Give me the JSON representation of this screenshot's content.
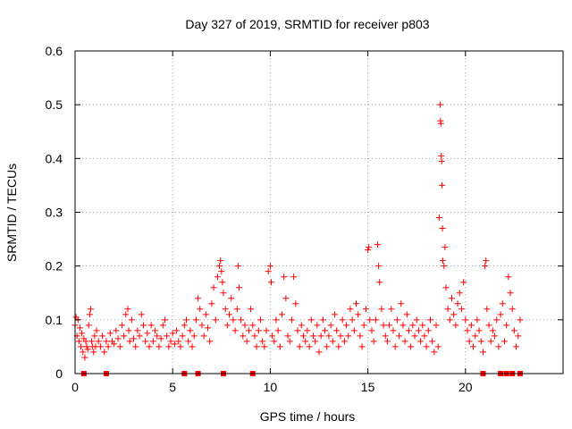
{
  "chart_data": {
    "type": "scatter",
    "title": "Day 327 of 2019, SRMTID for receiver p803",
    "xlabel": "GPS time / hours",
    "ylabel": "SRMTID / TECUs",
    "xlim": [
      0,
      25
    ],
    "ylim": [
      0,
      0.6
    ],
    "grid": true,
    "x_ticks": [
      0,
      5,
      10,
      15,
      20
    ],
    "x_tick_labels": [
      "0",
      "5",
      "10",
      "15",
      "20"
    ],
    "y_ticks": [
      0,
      0.1,
      0.2,
      0.3,
      0.4,
      0.5,
      0.6
    ],
    "y_tick_labels": [
      "0",
      "0.1",
      "0.2",
      "0.3",
      "0.4",
      "0.5",
      "0.6"
    ],
    "series": [
      {
        "name": "SRMTID",
        "marker": "plus",
        "color": "#ff0000",
        "points": [
          [
            0.0,
            0.09
          ],
          [
            0.05,
            0.105
          ],
          [
            0.1,
            0.07
          ],
          [
            0.15,
            0.1
          ],
          [
            0.2,
            0.06
          ],
          [
            0.25,
            0.085
          ],
          [
            0.3,
            0.05
          ],
          [
            0.35,
            0.075
          ],
          [
            0.4,
            0.04
          ],
          [
            0.45,
            0.065
          ],
          [
            0.5,
            0.03
          ],
          [
            0.55,
            0.06
          ],
          [
            0.6,
            0.05
          ],
          [
            0.65,
            0.045
          ],
          [
            0.7,
            0.09
          ],
          [
            0.75,
            0.11
          ],
          [
            0.8,
            0.12
          ],
          [
            0.85,
            0.06
          ],
          [
            0.9,
            0.05
          ],
          [
            0.95,
            0.04
          ],
          [
            1.0,
            0.07
          ],
          [
            1.05,
            0.05
          ],
          [
            1.1,
            0.08
          ],
          [
            1.2,
            0.06
          ],
          [
            1.3,
            0.05
          ],
          [
            1.4,
            0.07
          ],
          [
            1.5,
            0.04
          ],
          [
            1.6,
            0.06
          ],
          [
            1.7,
            0.05
          ],
          [
            1.8,
            0.075
          ],
          [
            1.9,
            0.06
          ],
          [
            2.0,
            0.055
          ],
          [
            2.1,
            0.08
          ],
          [
            2.2,
            0.065
          ],
          [
            2.3,
            0.05
          ],
          [
            2.4,
            0.09
          ],
          [
            2.5,
            0.07
          ],
          [
            2.6,
            0.11
          ],
          [
            2.7,
            0.12
          ],
          [
            2.75,
            0.08
          ],
          [
            2.8,
            0.06
          ],
          [
            2.9,
            0.1
          ],
          [
            3.0,
            0.065
          ],
          [
            3.1,
            0.05
          ],
          [
            3.2,
            0.08
          ],
          [
            3.3,
            0.07
          ],
          [
            3.4,
            0.11
          ],
          [
            3.5,
            0.09
          ],
          [
            3.6,
            0.06
          ],
          [
            3.7,
            0.075
          ],
          [
            3.8,
            0.05
          ],
          [
            3.9,
            0.09
          ],
          [
            4.0,
            0.06
          ],
          [
            4.1,
            0.08
          ],
          [
            4.2,
            0.07
          ],
          [
            4.3,
            0.05
          ],
          [
            4.4,
            0.065
          ],
          [
            4.5,
            0.09
          ],
          [
            4.6,
            0.1
          ],
          [
            4.7,
            0.07
          ],
          [
            4.8,
            0.05
          ],
          [
            4.9,
            0.06
          ],
          [
            5.0,
            0.075
          ],
          [
            5.1,
            0.055
          ],
          [
            5.2,
            0.08
          ],
          [
            5.3,
            0.06
          ],
          [
            5.4,
            0.05
          ],
          [
            5.5,
            0.07
          ],
          [
            5.6,
            0.09
          ],
          [
            5.7,
            0.1
          ],
          [
            5.8,
            0.06
          ],
          [
            5.9,
            0.08
          ],
          [
            6.0,
            0.05
          ],
          [
            6.1,
            0.07
          ],
          [
            6.2,
            0.1
          ],
          [
            6.3,
            0.14
          ],
          [
            6.4,
            0.12
          ],
          [
            6.5,
            0.09
          ],
          [
            6.6,
            0.07
          ],
          [
            6.7,
            0.11
          ],
          [
            6.8,
            0.085
          ],
          [
            6.9,
            0.06
          ],
          [
            7.0,
            0.13
          ],
          [
            7.1,
            0.16
          ],
          [
            7.2,
            0.1
          ],
          [
            7.3,
            0.18
          ],
          [
            7.4,
            0.2
          ],
          [
            7.45,
            0.21
          ],
          [
            7.5,
            0.19
          ],
          [
            7.55,
            0.17
          ],
          [
            7.6,
            0.15
          ],
          [
            7.7,
            0.12
          ],
          [
            7.8,
            0.09
          ],
          [
            7.9,
            0.11
          ],
          [
            8.0,
            0.14
          ],
          [
            8.1,
            0.1
          ],
          [
            8.2,
            0.08
          ],
          [
            8.3,
            0.12
          ],
          [
            8.35,
            0.2
          ],
          [
            8.4,
            0.16
          ],
          [
            8.5,
            0.1
          ],
          [
            8.6,
            0.07
          ],
          [
            8.7,
            0.09
          ],
          [
            8.8,
            0.06
          ],
          [
            8.9,
            0.08
          ],
          [
            9.0,
            0.12
          ],
          [
            9.1,
            0.09
          ],
          [
            9.2,
            0.07
          ],
          [
            9.3,
            0.05
          ],
          [
            9.4,
            0.08
          ],
          [
            9.5,
            0.1
          ],
          [
            9.6,
            0.06
          ],
          [
            9.7,
            0.05
          ],
          [
            9.8,
            0.08
          ],
          [
            9.9,
            0.19
          ],
          [
            10.0,
            0.2
          ],
          [
            10.05,
            0.17
          ],
          [
            10.1,
            0.07
          ],
          [
            10.2,
            0.06
          ],
          [
            10.3,
            0.1
          ],
          [
            10.4,
            0.08
          ],
          [
            10.5,
            0.05
          ],
          [
            10.6,
            0.11
          ],
          [
            10.7,
            0.18
          ],
          [
            10.8,
            0.14
          ],
          [
            10.9,
            0.07
          ],
          [
            11.0,
            0.06
          ],
          [
            11.1,
            0.1
          ],
          [
            11.2,
            0.18
          ],
          [
            11.3,
            0.13
          ],
          [
            11.4,
            0.08
          ],
          [
            11.5,
            0.05
          ],
          [
            11.6,
            0.09
          ],
          [
            11.7,
            0.07
          ],
          [
            11.8,
            0.06
          ],
          [
            11.9,
            0.08
          ],
          [
            12.0,
            0.05
          ],
          [
            12.1,
            0.1
          ],
          [
            12.2,
            0.07
          ],
          [
            12.3,
            0.06
          ],
          [
            12.4,
            0.09
          ],
          [
            12.5,
            0.04
          ],
          [
            12.6,
            0.07
          ],
          [
            12.7,
            0.1
          ],
          [
            12.8,
            0.08
          ],
          [
            12.9,
            0.05
          ],
          [
            13.0,
            0.07
          ],
          [
            13.1,
            0.09
          ],
          [
            13.2,
            0.06
          ],
          [
            13.3,
            0.11
          ],
          [
            13.4,
            0.08
          ],
          [
            13.5,
            0.05
          ],
          [
            13.6,
            0.07
          ],
          [
            13.7,
            0.1
          ],
          [
            13.8,
            0.06
          ],
          [
            13.9,
            0.09
          ],
          [
            14.0,
            0.07
          ],
          [
            14.1,
            0.12
          ],
          [
            14.2,
            0.1
          ],
          [
            14.3,
            0.08
          ],
          [
            14.4,
            0.13
          ],
          [
            14.5,
            0.11
          ],
          [
            14.6,
            0.07
          ],
          [
            14.7,
            0.05
          ],
          [
            14.8,
            0.09
          ],
          [
            14.9,
            0.12
          ],
          [
            15.0,
            0.23
          ],
          [
            15.05,
            0.235
          ],
          [
            15.1,
            0.1
          ],
          [
            15.2,
            0.08
          ],
          [
            15.3,
            0.06
          ],
          [
            15.4,
            0.1
          ],
          [
            15.5,
            0.24
          ],
          [
            15.55,
            0.2
          ],
          [
            15.6,
            0.17
          ],
          [
            15.7,
            0.12
          ],
          [
            15.8,
            0.09
          ],
          [
            15.9,
            0.07
          ],
          [
            16.0,
            0.06
          ],
          [
            16.1,
            0.09
          ],
          [
            16.2,
            0.12
          ],
          [
            16.3,
            0.08
          ],
          [
            16.4,
            0.05
          ],
          [
            16.5,
            0.1
          ],
          [
            16.6,
            0.07
          ],
          [
            16.7,
            0.13
          ],
          [
            16.8,
            0.09
          ],
          [
            16.9,
            0.06
          ],
          [
            17.0,
            0.11
          ],
          [
            17.1,
            0.08
          ],
          [
            17.2,
            0.05
          ],
          [
            17.3,
            0.09
          ],
          [
            17.4,
            0.07
          ],
          [
            17.5,
            0.1
          ],
          [
            17.6,
            0.08
          ],
          [
            17.7,
            0.06
          ],
          [
            17.8,
            0.09
          ],
          [
            17.9,
            0.07
          ],
          [
            18.0,
            0.05
          ],
          [
            18.1,
            0.08
          ],
          [
            18.2,
            0.1
          ],
          [
            18.3,
            0.06
          ],
          [
            18.4,
            0.04
          ],
          [
            18.5,
            0.09
          ],
          [
            18.6,
            0.05
          ],
          [
            18.65,
            0.29
          ],
          [
            18.7,
            0.5
          ],
          [
            18.72,
            0.47
          ],
          [
            18.74,
            0.465
          ],
          [
            18.76,
            0.405
          ],
          [
            18.78,
            0.395
          ],
          [
            18.8,
            0.35
          ],
          [
            18.82,
            0.27
          ],
          [
            18.84,
            0.21
          ],
          [
            18.9,
            0.2
          ],
          [
            18.95,
            0.235
          ],
          [
            19.0,
            0.16
          ],
          [
            19.1,
            0.12
          ],
          [
            19.2,
            0.1
          ],
          [
            19.3,
            0.14
          ],
          [
            19.4,
            0.11
          ],
          [
            19.5,
            0.09
          ],
          [
            19.6,
            0.13
          ],
          [
            19.7,
            0.15
          ],
          [
            19.8,
            0.12
          ],
          [
            19.9,
            0.17
          ],
          [
            20.0,
            0.1
          ],
          [
            20.1,
            0.08
          ],
          [
            20.2,
            0.06
          ],
          [
            20.3,
            0.09
          ],
          [
            20.4,
            0.05
          ],
          [
            20.5,
            0.07
          ],
          [
            20.6,
            0.1
          ],
          [
            20.7,
            0.08
          ],
          [
            20.8,
            0.06
          ],
          [
            20.9,
            0.04
          ],
          [
            21.0,
            0.2
          ],
          [
            21.05,
            0.21
          ],
          [
            21.1,
            0.12
          ],
          [
            21.2,
            0.09
          ],
          [
            21.3,
            0.06
          ],
          [
            21.4,
            0.08
          ],
          [
            21.5,
            0.07
          ],
          [
            21.6,
            0.1
          ],
          [
            21.7,
            0.05
          ],
          [
            21.8,
            0.11
          ],
          [
            21.9,
            0.13
          ],
          [
            22.0,
            0.06
          ],
          [
            22.1,
            0.09
          ],
          [
            22.2,
            0.18
          ],
          [
            22.3,
            0.15
          ],
          [
            22.4,
            0.12
          ],
          [
            22.5,
            0.08
          ],
          [
            22.6,
            0.05
          ],
          [
            22.7,
            0.07
          ],
          [
            22.8,
            0.1
          ]
        ]
      },
      {
        "name": "zero-level markers",
        "marker": "square",
        "color": "#ff0000",
        "points": [
          [
            0.45,
            0.0
          ],
          [
            1.6,
            0.0
          ],
          [
            5.6,
            0.0
          ],
          [
            6.3,
            0.0
          ],
          [
            7.6,
            0.0
          ],
          [
            9.1,
            0.0
          ],
          [
            20.9,
            0.0
          ],
          [
            21.8,
            0.0
          ],
          [
            22.1,
            0.0
          ],
          [
            22.4,
            0.0
          ],
          [
            22.8,
            0.0
          ]
        ]
      }
    ]
  }
}
